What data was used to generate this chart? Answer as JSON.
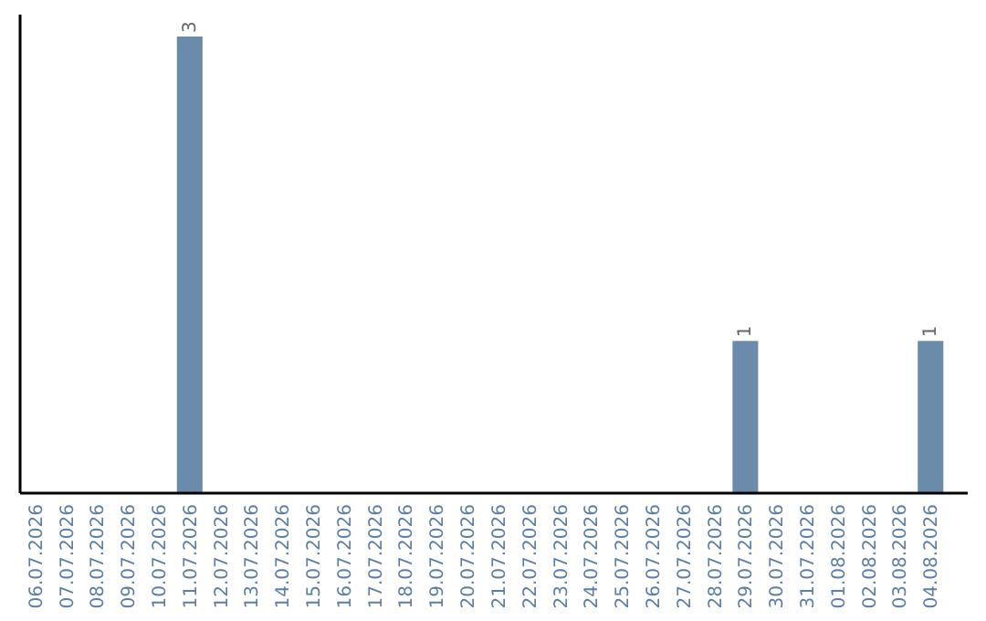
{
  "chart_data": {
    "type": "bar",
    "categories": [
      "06.07.2026",
      "07.07.2026",
      "08.07.2026",
      "09.07.2026",
      "10.07.2026",
      "11.07.2026",
      "12.07.2026",
      "13.07.2026",
      "14.07.2026",
      "15.07.2026",
      "16.07.2026",
      "17.07.2026",
      "18.07.2026",
      "19.07.2026",
      "20.07.2026",
      "21.07.2026",
      "22.07.2026",
      "23.07.2026",
      "24.07.2026",
      "25.07.2026",
      "26.07.2026",
      "27.07.2026",
      "28.07.2026",
      "29.07.2026",
      "30.07.2026",
      "31.07.2026",
      "01.08.2026",
      "02.08.2026",
      "03.08.2026",
      "04.08.2026"
    ],
    "values": [
      0,
      0,
      0,
      0,
      0,
      3,
      0,
      0,
      0,
      0,
      0,
      0,
      0,
      0,
      0,
      0,
      0,
      0,
      0,
      0,
      0,
      0,
      0,
      1,
      0,
      0,
      0,
      0,
      0,
      1
    ],
    "value_labels": [
      null,
      null,
      null,
      null,
      null,
      "3",
      null,
      null,
      null,
      null,
      null,
      null,
      null,
      null,
      null,
      null,
      null,
      null,
      null,
      null,
      null,
      null,
      null,
      "1",
      null,
      null,
      null,
      null,
      null,
      "1"
    ],
    "color": "#6a8caa",
    "grid": false
  }
}
